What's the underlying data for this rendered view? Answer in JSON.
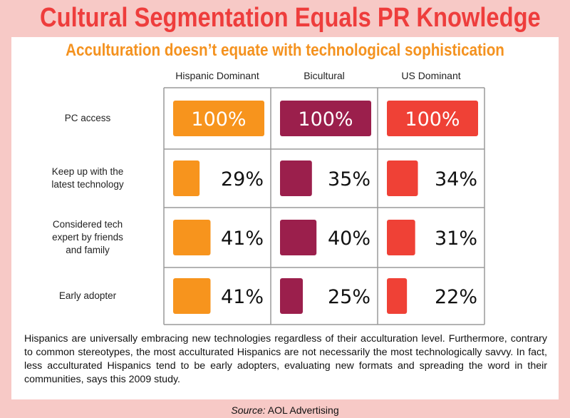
{
  "header": {
    "title": "Cultural Segmentation Equals PR Knowledge",
    "subtitle": "Acculturation doesn’t equate with technological sophistication"
  },
  "chart_data": {
    "type": "bar",
    "categories": [
      "PC access",
      "Keep up with the latest technology",
      "Considered tech expert by friends and family",
      "Early adopter"
    ],
    "row_label_lines": [
      [
        "PC access"
      ],
      [
        "Keep up with the",
        "latest technology"
      ],
      [
        "Considered tech",
        "expert by friends",
        "and family"
      ],
      [
        "Early adopter"
      ]
    ],
    "series": [
      {
        "name": "Hispanic Dominant",
        "color": "#f7941d",
        "values": [
          100,
          29,
          41,
          41
        ]
      },
      {
        "name": "Bicultural",
        "color": "#9b1f4c",
        "values": [
          100,
          35,
          40,
          25
        ]
      },
      {
        "name": "US Dominant",
        "color": "#ef4136",
        "values": [
          100,
          34,
          31,
          22
        ]
      }
    ],
    "value_labels": [
      [
        "100%",
        "29%",
        "41%",
        "41%"
      ],
      [
        "100%",
        "35%",
        "40%",
        "25%"
      ],
      [
        "100%",
        "34%",
        "31%",
        "22%"
      ]
    ],
    "ylim": [
      0,
      100
    ]
  },
  "body": {
    "text": "Hispanics are universally embracing new technologies regardless of their acculturation level. Furthermore, contrary to common stereotypes, the most acculturated Hispanics are not necessarily the most technologically savvy. In fact, less acculturated Hispanics tend to be early adopters, evaluating new formats and spreading the word in their communities, says this 2009 study."
  },
  "source": {
    "label": "Source:",
    "value": "AOL Advertising"
  }
}
